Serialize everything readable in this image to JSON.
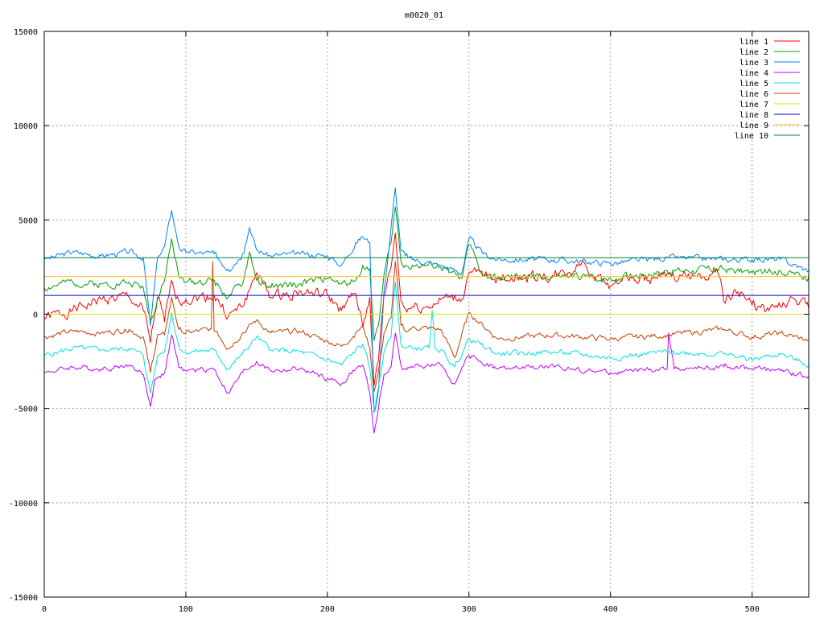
{
  "chart_data": {
    "type": "line",
    "title": "m0020_01",
    "xlabel": "",
    "ylabel": "",
    "xlim": [
      0,
      540
    ],
    "ylim": [
      -15000,
      15000
    ],
    "x_ticks": [
      0,
      100,
      200,
      300,
      400,
      500
    ],
    "y_ticks": [
      -15000,
      -10000,
      -5000,
      0,
      5000,
      10000,
      15000
    ],
    "x_tick_labels": [
      "0",
      "100",
      "200",
      "300",
      "400",
      "500"
    ],
    "y_tick_labels": [
      "-15000",
      "-10000",
      "-5000",
      "0",
      "5000",
      "10000",
      "15000"
    ],
    "grid": true,
    "legend_position": "top-right",
    "series": [
      {
        "name": "line 1",
        "color": "#ff0000",
        "baseline": 200,
        "amp": 550,
        "seed": 1,
        "x": [
          0,
          20,
          40,
          60,
          70,
          75,
          80,
          85,
          90,
          95,
          100,
          120,
          130,
          140,
          150,
          160,
          180,
          200,
          210,
          220,
          225,
          230,
          233,
          236,
          240,
          245,
          248,
          252,
          255,
          260,
          270,
          285,
          295,
          300,
          310,
          320,
          340,
          360,
          370,
          380,
          390,
          400,
          410,
          420,
          430,
          450,
          470,
          475,
          480,
          490,
          500,
          510,
          520,
          530,
          540
        ],
        "y": [
          -200,
          200,
          800,
          900,
          200,
          -1500,
          900,
          -400,
          1800,
          700,
          800,
          1000,
          -100,
          400,
          2200,
          900,
          1200,
          1000,
          200,
          1100,
          -700,
          900,
          -3800,
          -2500,
          1000,
          2500,
          4300,
          700,
          300,
          400,
          400,
          900,
          800,
          2200,
          2000,
          1900,
          2000,
          2000,
          2200,
          2800,
          2000,
          1500,
          2000,
          1700,
          1900,
          2000,
          2100,
          2400,
          700,
          1200,
          500,
          200,
          400,
          800,
          300
        ]
      },
      {
        "name": "line 2",
        "color": "#00a000",
        "baseline": 1700,
        "amp": 380,
        "seed": 2,
        "x": [
          0,
          20,
          40,
          60,
          70,
          75,
          80,
          85,
          90,
          95,
          100,
          120,
          130,
          140,
          145,
          150,
          160,
          180,
          200,
          210,
          220,
          225,
          230,
          233,
          236,
          240,
          245,
          248,
          252,
          255,
          260,
          280,
          295,
          300,
          310,
          320,
          360,
          400,
          440,
          480,
          500,
          520,
          540
        ],
        "y": [
          1400,
          1700,
          1600,
          1700,
          1400,
          -300,
          800,
          1800,
          4000,
          2000,
          1700,
          1800,
          900,
          1600,
          3300,
          1800,
          1400,
          1600,
          1900,
          1600,
          1800,
          2600,
          2400,
          -1400,
          -600,
          2100,
          3800,
          5700,
          2800,
          2600,
          2600,
          2500,
          1900,
          3700,
          2000,
          1900,
          2000,
          1900,
          2300,
          2400,
          2200,
          2300,
          2000
        ]
      },
      {
        "name": "line 3",
        "color": "#0080ff",
        "baseline": 3000,
        "amp": 300,
        "seed": 3,
        "x": [
          0,
          20,
          40,
          60,
          70,
          75,
          80,
          85,
          90,
          95,
          100,
          120,
          130,
          140,
          145,
          150,
          160,
          180,
          200,
          210,
          220,
          225,
          230,
          233,
          236,
          240,
          245,
          248,
          252,
          255,
          260,
          280,
          295,
          300,
          310,
          320,
          360,
          400,
          440,
          480,
          500,
          520,
          540
        ],
        "y": [
          2900,
          3300,
          3100,
          3300,
          3000,
          -600,
          3000,
          3600,
          5500,
          3600,
          3300,
          3200,
          2400,
          3200,
          4600,
          3400,
          3100,
          3200,
          3100,
          2600,
          3800,
          4100,
          3800,
          -5200,
          -4100,
          1200,
          4600,
          6700,
          3400,
          3100,
          2900,
          2600,
          2200,
          4000,
          3200,
          2900,
          2900,
          2700,
          3000,
          2900,
          2900,
          2900,
          2300
        ]
      },
      {
        "name": "line 4",
        "color": "#c000ff",
        "baseline": -2900,
        "amp": 260,
        "seed": 4,
        "x": [
          0,
          20,
          40,
          60,
          70,
          75,
          78,
          85,
          90,
          95,
          100,
          120,
          130,
          140,
          150,
          160,
          180,
          200,
          210,
          220,
          225,
          230,
          233,
          236,
          240,
          245,
          248,
          252,
          255,
          260,
          280,
          290,
          300,
          320,
          360,
          400,
          440,
          441,
          445,
          480,
          500,
          520,
          540
        ],
        "y": [
          -3100,
          -2800,
          -2900,
          -2700,
          -3200,
          -4900,
          -3500,
          -3100,
          -1100,
          -2800,
          -3000,
          -2900,
          -4200,
          -3100,
          -2500,
          -3000,
          -2900,
          -3400,
          -3700,
          -2900,
          -2700,
          -4200,
          -6300,
          -5000,
          -3200,
          -2800,
          -1000,
          -2700,
          -2900,
          -2800,
          -2700,
          -3700,
          -2200,
          -2900,
          -2800,
          -3100,
          -2900,
          -1000,
          -2900,
          -2800,
          -2900,
          -3000,
          -3300
        ]
      },
      {
        "name": "line 5",
        "color": "#00e0e0",
        "baseline": -2000,
        "amp": 280,
        "seed": 5,
        "x": [
          0,
          20,
          40,
          60,
          70,
          75,
          80,
          85,
          90,
          95,
          100,
          120,
          130,
          140,
          150,
          160,
          180,
          200,
          210,
          220,
          225,
          230,
          233,
          236,
          240,
          245,
          248,
          252,
          255,
          260,
          272,
          274,
          276,
          280,
          290,
          300,
          320,
          360,
          400,
          440,
          480,
          500,
          520,
          540
        ],
        "y": [
          -2200,
          -1800,
          -1900,
          -1800,
          -2200,
          -4200,
          -2200,
          -2000,
          100,
          -1700,
          -2000,
          -1900,
          -2900,
          -2100,
          -1200,
          -1900,
          -2000,
          -2400,
          -2700,
          -1900,
          -1600,
          -2900,
          -5100,
          -3900,
          -2000,
          -1200,
          1700,
          -1600,
          -1800,
          -1800,
          -1800,
          200,
          -1800,
          -1900,
          -2800,
          -1300,
          -2100,
          -2000,
          -2300,
          -2000,
          -2100,
          -2400,
          -2100,
          -2700
        ]
      },
      {
        "name": "line 6",
        "color": "#c04000",
        "baseline": -1000,
        "amp": 280,
        "seed": 6,
        "x": [
          0,
          20,
          40,
          60,
          70,
          75,
          80,
          85,
          90,
          95,
          100,
          118,
          119,
          120,
          122,
          130,
          140,
          150,
          160,
          180,
          200,
          210,
          220,
          225,
          230,
          233,
          236,
          240,
          245,
          248,
          252,
          255,
          260,
          280,
          290,
          300,
          320,
          360,
          400,
          440,
          480,
          500,
          520,
          540
        ],
        "y": [
          -1200,
          -900,
          -1000,
          -800,
          -1200,
          -3100,
          -1100,
          -1100,
          900,
          -800,
          -1000,
          -800,
          2800,
          -900,
          -900,
          -1800,
          -1000,
          -300,
          -1000,
          -900,
          -1400,
          -1700,
          -1000,
          -600,
          -1800,
          -4100,
          -3100,
          -1000,
          -200,
          2800,
          -600,
          -900,
          -700,
          -800,
          -2300,
          100,
          -1300,
          -1100,
          -1300,
          -1100,
          -800,
          -1200,
          -1000,
          -1400
        ]
      },
      {
        "name": "line 7",
        "color": "#e0e000",
        "baseline": 0,
        "amp": 0,
        "seed": 7,
        "x": [
          0,
          540
        ],
        "y": [
          0,
          0
        ]
      },
      {
        "name": "line 8",
        "color": "#0000c0",
        "baseline": 1000,
        "amp": 0,
        "seed": 8,
        "x": [
          0,
          540
        ],
        "y": [
          1000,
          1000
        ]
      },
      {
        "name": "line 9",
        "color": "#ffc020",
        "baseline": 2000,
        "amp": 0,
        "seed": 9,
        "x": [
          0,
          540
        ],
        "y": [
          2000,
          2000
        ]
      },
      {
        "name": "line 10",
        "color": "#008040",
        "baseline": 3000,
        "amp": 0,
        "seed": 10,
        "x": [
          0,
          540
        ],
        "y": [
          3000,
          3000
        ]
      }
    ]
  }
}
